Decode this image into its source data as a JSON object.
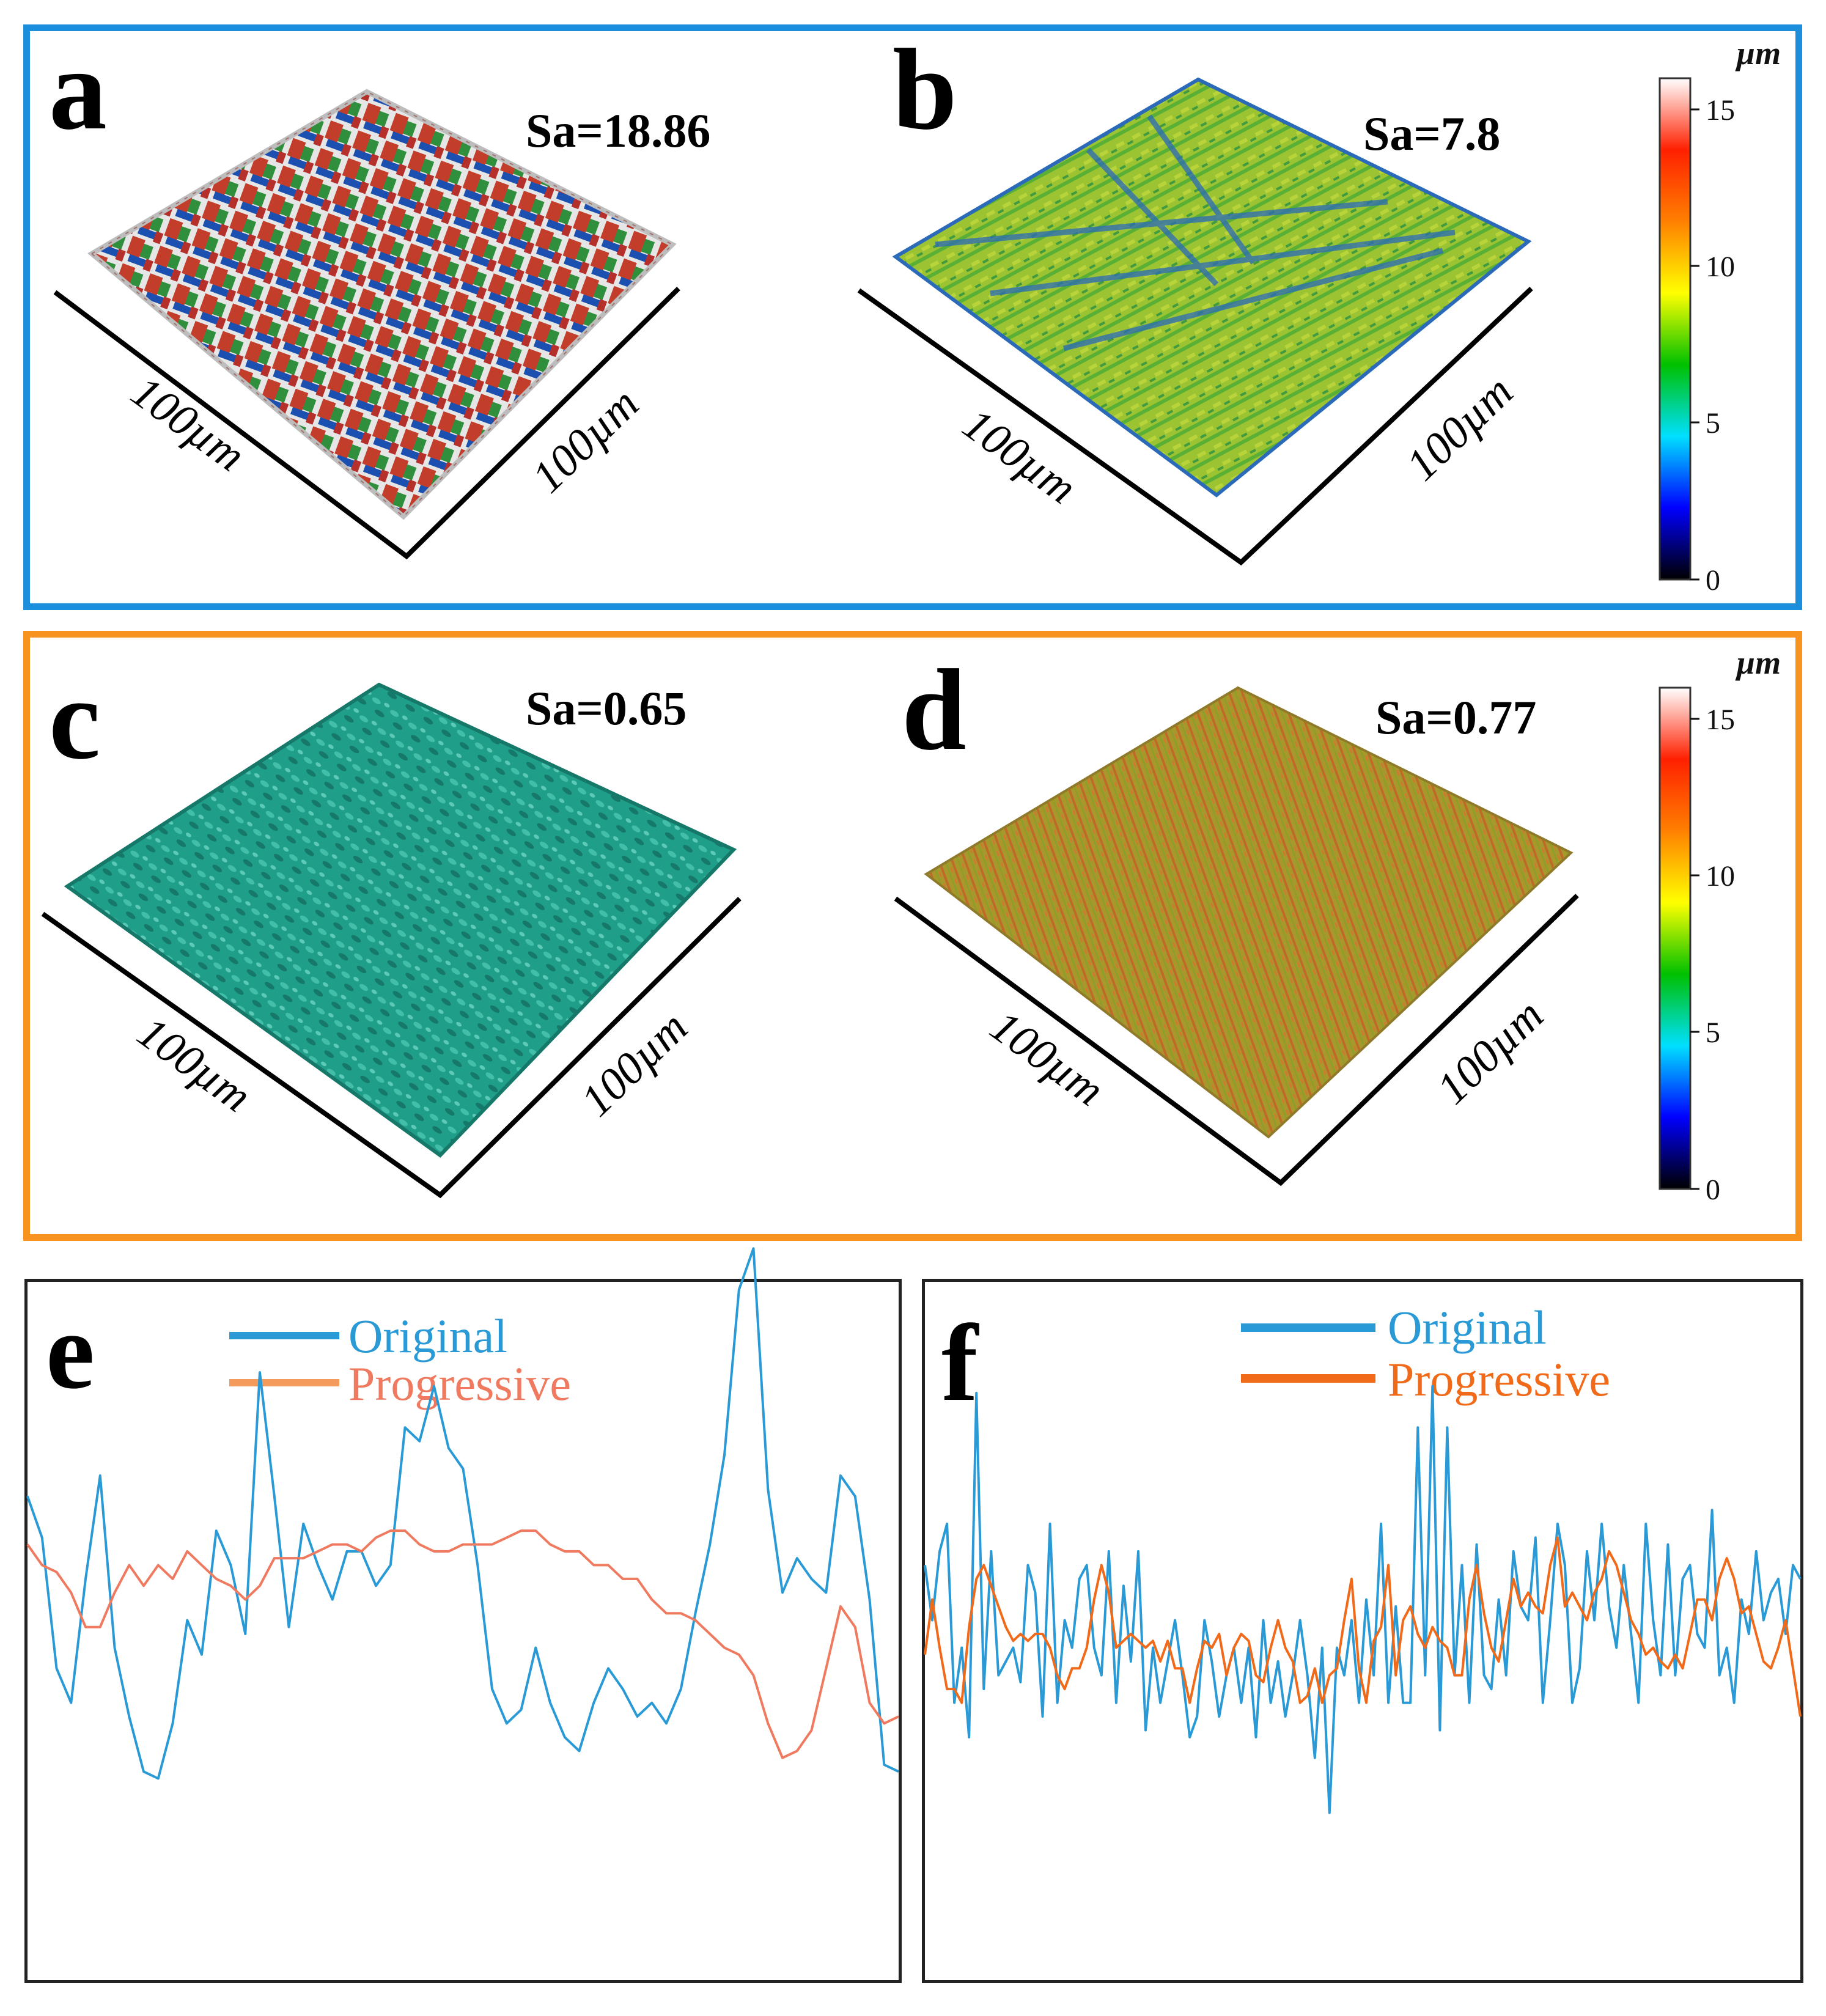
{
  "panels": {
    "a": {
      "label": "a",
      "sa": "Sa=18.86",
      "x_axis": "100µm",
      "y_axis": "100µm"
    },
    "b": {
      "label": "b",
      "sa": "Sa=7.8",
      "x_axis": "100µm",
      "y_axis": "100µm"
    },
    "c": {
      "label": "c",
      "sa": "Sa=0.65",
      "x_axis": "100µm",
      "y_axis": "100µm"
    },
    "d": {
      "label": "d",
      "sa": "Sa=0.77",
      "x_axis": "100µm",
      "y_axis": "100µm"
    },
    "e": {
      "label": "e"
    },
    "f": {
      "label": "f"
    }
  },
  "colorbar": {
    "unit": "µm",
    "ticks": [
      "0",
      "5",
      "10",
      "15"
    ],
    "range": [
      0,
      16
    ],
    "stops": [
      "#000000",
      "#0000ff",
      "#00e0ff",
      "#00c000",
      "#ffff00",
      "#ff8000",
      "#ff2000",
      "#ffffff"
    ]
  },
  "colors": {
    "frame_top": "#1b8fdc",
    "frame_middle": "#f7931e",
    "original": "#2a9ad6",
    "progressive_e": "#ef7a5f",
    "progressive_f": "#f06a1a",
    "surface_a": [
      "#c23d2a",
      "#2f8f3c",
      "#1b4fb0",
      "#e0e0e0"
    ],
    "surface_b": [
      "#a3c832",
      "#4aa534",
      "#2a6ab8"
    ],
    "surface_c": [
      "#1f9e8a",
      "#35b3a0",
      "#167868"
    ],
    "surface_d": [
      "#b29a2a",
      "#c06a2a",
      "#8f9e2a"
    ]
  },
  "chart_data": [
    {
      "panel": "e",
      "type": "line",
      "title": "",
      "xlabel": "",
      "ylabel": "",
      "xlim": [
        0,
        60
      ],
      "ylim": [
        0,
        100
      ],
      "legend": "top-center",
      "series": [
        {
          "name": "Original",
          "values": [
            70,
            64,
            45,
            40,
            58,
            73,
            48,
            38,
            30,
            29,
            37,
            52,
            47,
            65,
            60,
            50,
            88,
            70,
            51,
            66,
            60,
            55,
            62,
            62,
            57,
            60,
            80,
            78,
            86,
            77,
            74,
            60,
            42,
            37,
            39,
            48,
            40,
            35,
            33,
            40,
            45,
            42,
            38,
            40,
            37,
            42,
            53,
            63,
            76,
            100,
            106,
            71,
            56,
            61,
            58,
            56,
            73,
            70,
            55,
            31,
            30
          ]
        },
        {
          "name": "Progressive",
          "values": [
            63,
            60,
            59,
            56,
            51,
            51,
            56,
            60,
            57,
            60,
            58,
            62,
            60,
            58,
            57,
            55,
            57,
            61,
            61,
            61,
            62,
            63,
            63,
            62,
            64,
            65,
            65,
            63,
            62,
            62,
            63,
            63,
            63,
            64,
            65,
            65,
            63,
            62,
            62,
            60,
            60,
            58,
            58,
            55,
            53,
            53,
            52,
            50,
            48,
            47,
            44,
            37,
            32,
            33,
            36,
            45,
            54,
            51,
            40,
            37,
            38
          ]
        }
      ]
    },
    {
      "panel": "f",
      "type": "line",
      "title": "",
      "xlabel": "",
      "ylabel": "",
      "xlim": [
        0,
        120
      ],
      "ylim": [
        0,
        100
      ],
      "legend": "top-center",
      "series": [
        {
          "name": "Original",
          "values": [
            60,
            52,
            62,
            66,
            40,
            48,
            35,
            85,
            42,
            62,
            44,
            46,
            48,
            43,
            60,
            56,
            38,
            66,
            40,
            52,
            48,
            58,
            60,
            48,
            44,
            62,
            40,
            57,
            46,
            62,
            36,
            48,
            40,
            46,
            52,
            44,
            35,
            38,
            52,
            46,
            38,
            44,
            48,
            40,
            48,
            35,
            52,
            40,
            46,
            38,
            44,
            52,
            44,
            32,
            48,
            24,
            48,
            44,
            52,
            40,
            55,
            44,
            66,
            40,
            54,
            40,
            40,
            80,
            44,
            86,
            36,
            80,
            44,
            60,
            40,
            63,
            44,
            42,
            55,
            44,
            62,
            54,
            52,
            64,
            40,
            52,
            66,
            60,
            40,
            45,
            62,
            52,
            66,
            54,
            48,
            60,
            50,
            40,
            66,
            52,
            44,
            63,
            44,
            58,
            60,
            50,
            48,
            68,
            44,
            48,
            40,
            55,
            50,
            62,
            52,
            56,
            58,
            50,
            60,
            58
          ]
        },
        {
          "name": "Progressive",
          "values": [
            47,
            55,
            48,
            42,
            42,
            40,
            51,
            58,
            60,
            57,
            54,
            51,
            49,
            50,
            49,
            50,
            50,
            48,
            44,
            42,
            45,
            45,
            48,
            55,
            60,
            56,
            48,
            49,
            50,
            49,
            48,
            49,
            46,
            49,
            45,
            45,
            40,
            45,
            49,
            48,
            50,
            44,
            48,
            50,
            49,
            44,
            43,
            48,
            52,
            48,
            46,
            40,
            41,
            45,
            40,
            44,
            45,
            52,
            58,
            45,
            40,
            49,
            51,
            60,
            44,
            52,
            54,
            50,
            48,
            51,
            49,
            48,
            44,
            44,
            55,
            60,
            53,
            48,
            46,
            52,
            58,
            54,
            56,
            54,
            53,
            60,
            64,
            54,
            56,
            54,
            52,
            56,
            58,
            62,
            60,
            56,
            52,
            50,
            47,
            48,
            46,
            45,
            47,
            45,
            50,
            55,
            55,
            52,
            58,
            61,
            58,
            53,
            54,
            50,
            46,
            45,
            48,
            52,
            45,
            38
          ]
        }
      ]
    }
  ]
}
